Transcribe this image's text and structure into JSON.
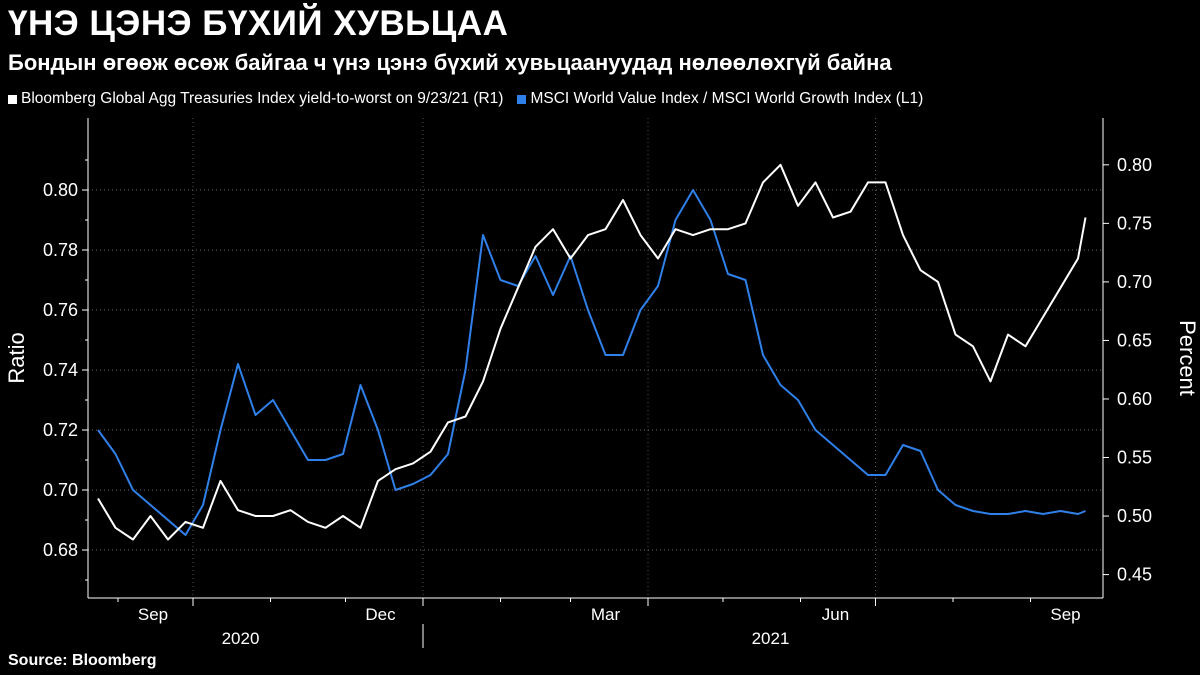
{
  "chart_data": {
    "type": "line",
    "title": "ҮНЭ ЦЭНЭ БҮХИЙ ХУВЬЦАА",
    "subtitle": "Бондын өгөөж өсөж байгаа ч үнэ цэнэ бүхий хувьцаануудад нөлөөлөхгүй байна",
    "source": "Source:  Bloomberg",
    "y_left": {
      "label": "Ratio",
      "range": [
        0.664,
        0.824
      ],
      "ticks": [
        "0.80",
        "0.78",
        "0.76",
        "0.74",
        "0.72",
        "0.70",
        "0.68"
      ]
    },
    "y_right": {
      "label": "Percent",
      "range": [
        0.43,
        0.84
      ],
      "ticks": [
        "0.80",
        "0.75",
        "0.70",
        "0.65",
        "0.60",
        "0.55",
        "0.50",
        "0.45"
      ]
    },
    "x_months": [
      "Sep",
      "Dec",
      "Mar",
      "Jun",
      "Sep"
    ],
    "x_years": [
      "2020",
      "2021"
    ],
    "grid": true,
    "series": [
      {
        "name": "Bloomberg Global Agg Treasuries Index yield-to-worst on 9/23/21 (R1)",
        "axis": "right",
        "color": "#ffffff",
        "x": [
          "2020-08-24",
          "2020-08-31",
          "2020-09-07",
          "2020-09-14",
          "2020-09-21",
          "2020-09-28",
          "2020-10-05",
          "2020-10-12",
          "2020-10-19",
          "2020-10-26",
          "2020-11-02",
          "2020-11-09",
          "2020-11-16",
          "2020-11-23",
          "2020-11-30",
          "2020-12-07",
          "2020-12-14",
          "2020-12-21",
          "2020-12-28",
          "2021-01-04",
          "2021-01-11",
          "2021-01-18",
          "2021-01-25",
          "2021-02-01",
          "2021-02-08",
          "2021-02-15",
          "2021-02-22",
          "2021-03-01",
          "2021-03-08",
          "2021-03-15",
          "2021-03-22",
          "2021-03-29",
          "2021-04-05",
          "2021-04-12",
          "2021-04-19",
          "2021-04-26",
          "2021-05-03",
          "2021-05-10",
          "2021-05-17",
          "2021-05-24",
          "2021-05-31",
          "2021-06-07",
          "2021-06-14",
          "2021-06-21",
          "2021-06-28",
          "2021-07-05",
          "2021-07-12",
          "2021-07-19",
          "2021-07-26",
          "2021-08-02",
          "2021-08-09",
          "2021-08-16",
          "2021-08-23",
          "2021-08-30",
          "2021-09-06",
          "2021-09-13",
          "2021-09-20",
          "2021-09-23"
        ],
        "values": [
          0.515,
          0.49,
          0.48,
          0.5,
          0.48,
          0.495,
          0.49,
          0.53,
          0.505,
          0.5,
          0.5,
          0.505,
          0.495,
          0.49,
          0.5,
          0.49,
          0.53,
          0.54,
          0.545,
          0.555,
          0.58,
          0.585,
          0.615,
          0.66,
          0.695,
          0.73,
          0.745,
          0.72,
          0.74,
          0.745,
          0.77,
          0.74,
          0.72,
          0.745,
          0.74,
          0.745,
          0.745,
          0.75,
          0.785,
          0.8,
          0.765,
          0.785,
          0.755,
          0.76,
          0.785,
          0.785,
          0.74,
          0.71,
          0.7,
          0.655,
          0.645,
          0.615,
          0.655,
          0.645,
          0.67,
          0.695,
          0.72,
          0.755
        ]
      },
      {
        "name": "MSCI World Value Index / MSCI World Growth Index (L1)",
        "axis": "left",
        "color": "#2f80e8",
        "x": [
          "2020-08-24",
          "2020-08-31",
          "2020-09-07",
          "2020-09-14",
          "2020-09-21",
          "2020-09-28",
          "2020-10-05",
          "2020-10-12",
          "2020-10-19",
          "2020-10-26",
          "2020-11-02",
          "2020-11-09",
          "2020-11-16",
          "2020-11-23",
          "2020-11-30",
          "2020-12-07",
          "2020-12-14",
          "2020-12-21",
          "2020-12-28",
          "2021-01-04",
          "2021-01-11",
          "2021-01-18",
          "2021-01-25",
          "2021-02-01",
          "2021-02-08",
          "2021-02-15",
          "2021-02-22",
          "2021-03-01",
          "2021-03-08",
          "2021-03-15",
          "2021-03-22",
          "2021-03-29",
          "2021-04-05",
          "2021-04-12",
          "2021-04-19",
          "2021-04-26",
          "2021-05-03",
          "2021-05-10",
          "2021-05-17",
          "2021-05-24",
          "2021-05-31",
          "2021-06-07",
          "2021-06-14",
          "2021-06-21",
          "2021-06-28",
          "2021-07-05",
          "2021-07-12",
          "2021-07-19",
          "2021-07-26",
          "2021-08-02",
          "2021-08-09",
          "2021-08-16",
          "2021-08-23",
          "2021-08-30",
          "2021-09-06",
          "2021-09-13",
          "2021-09-20",
          "2021-09-23"
        ],
        "values": [
          0.72,
          0.712,
          0.7,
          0.695,
          0.69,
          0.685,
          0.695,
          0.72,
          0.742,
          0.725,
          0.73,
          0.72,
          0.71,
          0.71,
          0.712,
          0.735,
          0.72,
          0.7,
          0.702,
          0.705,
          0.712,
          0.74,
          0.785,
          0.77,
          0.768,
          0.778,
          0.765,
          0.778,
          0.76,
          0.745,
          0.745,
          0.76,
          0.768,
          0.79,
          0.8,
          0.79,
          0.772,
          0.77,
          0.745,
          0.735,
          0.73,
          0.72,
          0.715,
          0.71,
          0.705,
          0.705,
          0.715,
          0.713,
          0.7,
          0.695,
          0.693,
          0.692,
          0.692,
          0.693,
          0.692,
          0.693,
          0.692,
          0.693
        ]
      }
    ]
  }
}
